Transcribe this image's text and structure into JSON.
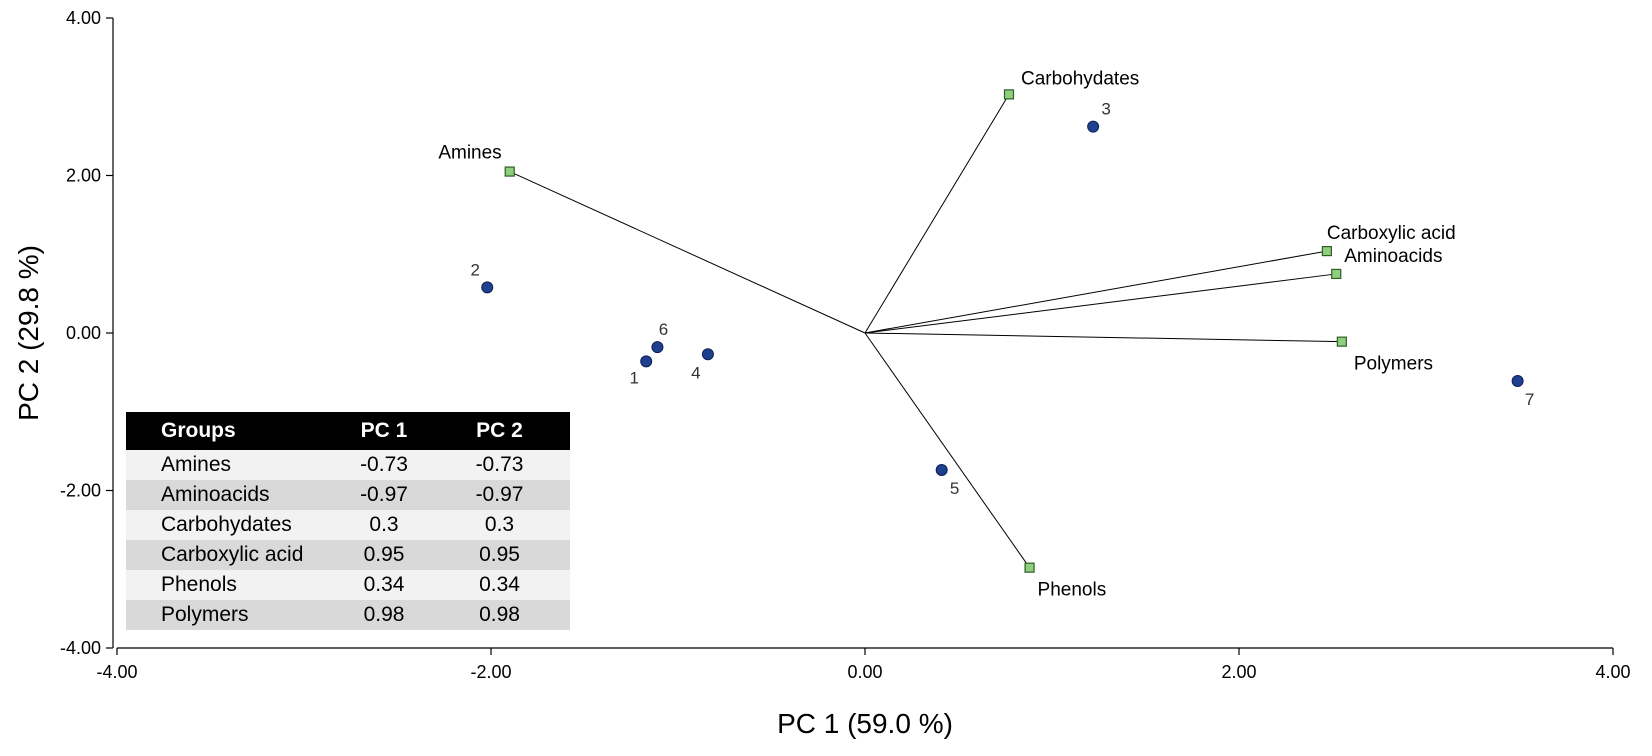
{
  "chart_data": {
    "type": "scatter",
    "subtype": "pca-biplot",
    "xlabel": "PC 1 (59.0 %)",
    "ylabel": "PC 2 (29.8 %)",
    "xlim": [
      -4,
      4
    ],
    "ylim": [
      -4,
      4
    ],
    "x_ticks": [
      -4,
      -2,
      0,
      2,
      4
    ],
    "x_tick_labels": [
      "-4.00",
      "-2.00",
      "0.00",
      "2.00",
      "4.00"
    ],
    "y_ticks": [
      -4,
      -2,
      0,
      2,
      4
    ],
    "y_tick_labels": [
      "-4.00",
      "-2.00",
      "0.00",
      "2.00",
      "4.00"
    ],
    "grid": false,
    "colors": {
      "point": "#1f3f8f",
      "point_edge": "#0e1f55",
      "vector_marker": "#8fce7a",
      "vector_marker_edge": "#2f5f2a",
      "line": "#000000"
    },
    "loadings": [
      {
        "label": "Amines",
        "x": -1.9,
        "y": 2.05
      },
      {
        "label": "Carbohydates",
        "x": 0.77,
        "y": 3.03
      },
      {
        "label": "Carboxylic acid",
        "x": 2.47,
        "y": 1.04
      },
      {
        "label": "Aminoacids",
        "x": 2.52,
        "y": 0.75
      },
      {
        "label": "Polymers",
        "x": 2.55,
        "y": -0.11
      },
      {
        "label": "Phenols",
        "x": 0.88,
        "y": -2.98
      }
    ],
    "scores": [
      {
        "label": "1",
        "x": -1.17,
        "y": -0.36
      },
      {
        "label": "2",
        "x": -2.02,
        "y": 0.58
      },
      {
        "label": "3",
        "x": 1.22,
        "y": 2.62
      },
      {
        "label": "4",
        "x": -0.84,
        "y": -0.27
      },
      {
        "label": "5",
        "x": 0.41,
        "y": -1.74
      },
      {
        "label": "6",
        "x": -1.11,
        "y": -0.18
      },
      {
        "label": "7",
        "x": 3.49,
        "y": -0.61
      }
    ],
    "table": {
      "headers": [
        "Groups",
        "PC 1",
        "PC 2"
      ],
      "rows": [
        [
          "Amines",
          "-0.73",
          "-0.73"
        ],
        [
          "Aminoacids",
          "-0.97",
          "-0.97"
        ],
        [
          "Carbohydates",
          "0.3",
          "0.3"
        ],
        [
          "Carboxylic acid",
          "0.95",
          "0.95"
        ],
        [
          "Phenols",
          "0.34",
          "0.34"
        ],
        [
          "Polymers",
          "0.98",
          "0.98"
        ]
      ]
    }
  }
}
